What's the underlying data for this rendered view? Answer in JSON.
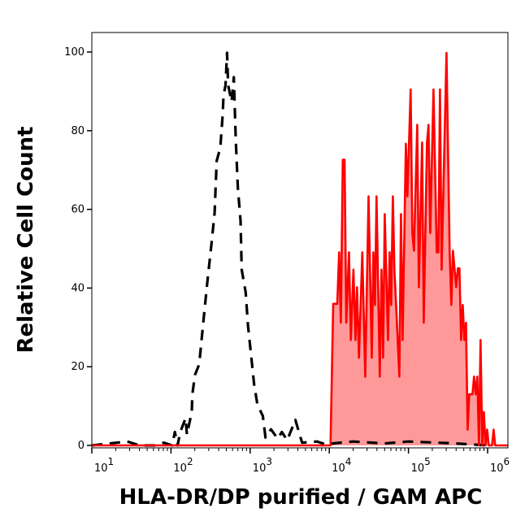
{
  "chart_data": {
    "type": "area",
    "xlabel": "HLA-DR/DP purified / GAM APC",
    "ylabel": "Relative Cell Count",
    "x_scale": "log",
    "xlim": [
      10,
      1800000
    ],
    "ylim": [
      0,
      100
    ],
    "x_ticks": [
      {
        "value": 10,
        "base": "10",
        "exp": "1"
      },
      {
        "value": 100,
        "base": "10",
        "exp": "2"
      },
      {
        "value": 1000,
        "base": "10",
        "exp": "3"
      },
      {
        "value": 10000,
        "base": "10",
        "exp": "4"
      },
      {
        "value": 100000,
        "base": "10",
        "exp": "5"
      },
      {
        "value": 1000000,
        "base": "10",
        "exp": "6"
      }
    ],
    "y_ticks": [
      {
        "value": 0,
        "label": "0"
      },
      {
        "value": 20,
        "label": "20"
      },
      {
        "value": 40,
        "label": "40"
      },
      {
        "value": 60,
        "label": "60"
      },
      {
        "value": 80,
        "label": "80"
      },
      {
        "value": 100,
        "label": "100"
      }
    ],
    "grid": false,
    "series": [
      {
        "style": "dashed-line",
        "color": "#000000",
        "points": [
          [
            10,
            0
          ],
          [
            28,
            1
          ],
          [
            40,
            0
          ],
          [
            62,
            0
          ],
          [
            81.5,
            0.7
          ],
          [
            103,
            0
          ],
          [
            112,
            3.4
          ],
          [
            121,
            0
          ],
          [
            131,
            3.4
          ],
          [
            153,
            6.9
          ],
          [
            159,
            2.7
          ],
          [
            183,
            8.6
          ],
          [
            186,
            13
          ],
          [
            201,
            17.9
          ],
          [
            227,
            20.6
          ],
          [
            255,
            31
          ],
          [
            287,
            41.3
          ],
          [
            324,
            51
          ],
          [
            356,
            59.2
          ],
          [
            378,
            72.3
          ],
          [
            420,
            75.7
          ],
          [
            450,
            84
          ],
          [
            461,
            88.8
          ],
          [
            488,
            91.6
          ],
          [
            511,
            99.8
          ],
          [
            527,
            91.6
          ],
          [
            583,
            87.4
          ],
          [
            622,
            93.6
          ],
          [
            658,
            77.8
          ],
          [
            700,
            65.4
          ],
          [
            757,
            57.1
          ],
          [
            782,
            44.7
          ],
          [
            879,
            38.9
          ],
          [
            938,
            30.6
          ],
          [
            1122,
            15.5
          ],
          [
            1236,
            10.3
          ],
          [
            1445,
            7.5
          ],
          [
            1563,
            2
          ],
          [
            1832,
            4.1
          ],
          [
            2228,
            1.7
          ],
          [
            2512,
            3.4
          ],
          [
            2938,
            1.3
          ],
          [
            3724,
            6.5
          ],
          [
            4529,
            0.7
          ],
          [
            7000,
            1
          ],
          [
            8850,
            0.3
          ],
          [
            20000,
            1
          ],
          [
            50000,
            0.5
          ],
          [
            100000,
            1
          ],
          [
            400000,
            0.5
          ],
          [
            1000000,
            0
          ]
        ]
      },
      {
        "style": "filled-area",
        "color": "#ff0000",
        "fill": "#ff9999",
        "points": [
          [
            10,
            0
          ],
          [
            10350,
            0
          ],
          [
            11200,
            36
          ],
          [
            12600,
            36
          ],
          [
            13300,
            49.1
          ],
          [
            14000,
            31.2
          ],
          [
            14800,
            72.6
          ],
          [
            15600,
            72.6
          ],
          [
            16400,
            31.2
          ],
          [
            17700,
            49.1
          ],
          [
            18700,
            26.8
          ],
          [
            20200,
            44.7
          ],
          [
            21400,
            26.8
          ],
          [
            22400,
            40.2
          ],
          [
            23700,
            22.3
          ],
          [
            26100,
            49.1
          ],
          [
            28400,
            17.5
          ],
          [
            31300,
            63.3
          ],
          [
            34400,
            22.3
          ],
          [
            36000,
            49.1
          ],
          [
            37800,
            35.7
          ],
          [
            39500,
            63.3
          ],
          [
            43400,
            17.5
          ],
          [
            45600,
            44.7
          ],
          [
            47800,
            22.3
          ],
          [
            50100,
            58.8
          ],
          [
            55100,
            26.8
          ],
          [
            57800,
            49.1
          ],
          [
            60500,
            35.7
          ],
          [
            63500,
            63.3
          ],
          [
            66500,
            44.7
          ],
          [
            69800,
            35.7
          ],
          [
            76700,
            17.5
          ],
          [
            80400,
            58.8
          ],
          [
            84300,
            26.8
          ],
          [
            92700,
            76.7
          ],
          [
            97000,
            63.3
          ],
          [
            106700,
            90.5
          ],
          [
            111900,
            54
          ],
          [
            117500,
            49.5
          ],
          [
            129100,
            81.5
          ],
          [
            135200,
            40.2
          ],
          [
            148600,
            77
          ],
          [
            156000,
            31.2
          ],
          [
            171400,
            77
          ],
          [
            179500,
            81.5
          ],
          [
            188400,
            54
          ],
          [
            207000,
            90.5
          ],
          [
            227500,
            49.1
          ],
          [
            238800,
            49.1
          ],
          [
            250000,
            90.5
          ],
          [
            262400,
            44.7
          ],
          [
            302000,
            99.8
          ],
          [
            331900,
            49.1
          ],
          [
            348300,
            35.7
          ],
          [
            364800,
            49.5
          ],
          [
            400900,
            40.2
          ],
          [
            420700,
            45
          ],
          [
            440600,
            45
          ],
          [
            462400,
            26.8
          ],
          [
            485300,
            35.7
          ],
          [
            508200,
            26.8
          ],
          [
            533300,
            31.2
          ],
          [
            558500,
            4
          ],
          [
            586100,
            13
          ],
          [
            644200,
            13
          ],
          [
            674500,
            17.5
          ],
          [
            707900,
            13
          ],
          [
            741300,
            17.5
          ],
          [
            778000,
            0
          ],
          [
            814700,
            26.8
          ],
          [
            855000,
            0
          ],
          [
            897000,
            8.5
          ],
          [
            939700,
            0
          ],
          [
            986300,
            4
          ],
          [
            1033000,
            0
          ],
          [
            1135000,
            0
          ],
          [
            1191000,
            4
          ],
          [
            1247000,
            0
          ],
          [
            1800000,
            0
          ]
        ]
      }
    ]
  }
}
